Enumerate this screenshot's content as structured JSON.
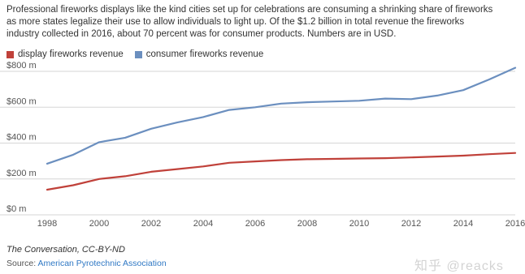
{
  "intro_text": "Professional fireworks displays like the kind cities set up for celebrations are consuming a shrinking share of fireworks as more states legalize their use to allow individuals to light up. Of the $1.2 billion in total revenue the fireworks industry collected in 2016, about 70 percent was for consumer products. Numbers are in USD.",
  "colors": {
    "display": "#c0413a",
    "consumer": "#6b8fbf",
    "grid": "#d6d6d6",
    "tick": "#555555"
  },
  "chart_data": {
    "type": "line",
    "xlabel": "",
    "ylabel": "",
    "xlim": [
      1998,
      2016
    ],
    "ylim": [
      0,
      800
    ],
    "x_ticks": [
      1998,
      2000,
      2002,
      2004,
      2006,
      2008,
      2010,
      2012,
      2014,
      2016
    ],
    "y_ticks": [
      {
        "value": 0,
        "label": "$0 m"
      },
      {
        "value": 200,
        "label": "$200 m"
      },
      {
        "value": 400,
        "label": "$400 m"
      },
      {
        "value": 600,
        "label": "$600 m"
      },
      {
        "value": 800,
        "label": "$800 m"
      }
    ],
    "grid": true,
    "legend_position": "top-left",
    "x": [
      1998,
      1999,
      2000,
      2001,
      2002,
      2003,
      2004,
      2005,
      2006,
      2007,
      2008,
      2009,
      2010,
      2011,
      2012,
      2013,
      2014,
      2015,
      2016
    ],
    "series": [
      {
        "name": "display fireworks revenue",
        "color": "#c0413a",
        "values": [
          140,
          165,
          200,
          215,
          240,
          255,
          270,
          290,
          298,
          305,
          310,
          312,
          314,
          316,
          320,
          325,
          330,
          338,
          345
        ]
      },
      {
        "name": "consumer fireworks revenue",
        "color": "#6b8fbf",
        "values": [
          285,
          335,
          405,
          430,
          480,
          515,
          545,
          585,
          600,
          620,
          628,
          632,
          636,
          648,
          645,
          665,
          695,
          755,
          820
        ]
      }
    ]
  },
  "footer": {
    "credit": "The Conversation, CC-BY-ND",
    "source_label": "Source: ",
    "source_name": "American Pyrotechnic Association"
  },
  "watermark": "知乎 @reacks"
}
